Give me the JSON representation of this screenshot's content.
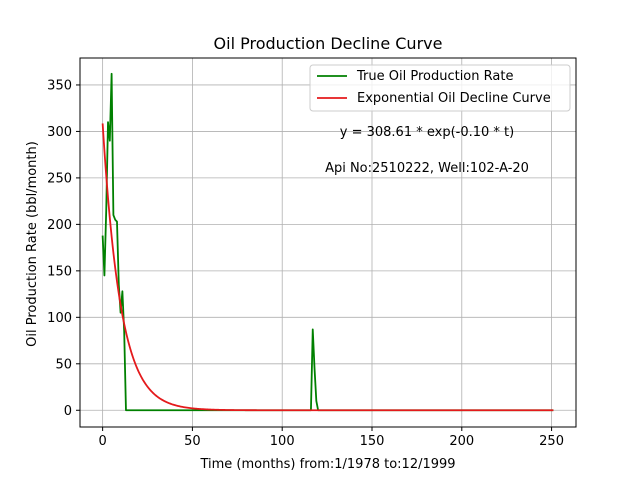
{
  "chart_data": {
    "type": "line",
    "title": "Oil Production Decline Curve",
    "xlabel": "Time (months) from:1/1978 to:12/1999",
    "ylabel": "Oil Production Rate (bbl/month)",
    "xlim": [
      -12.6,
      263.6
    ],
    "ylim": [
      -18,
      379
    ],
    "xticks": [
      0,
      50,
      100,
      150,
      200,
      250
    ],
    "yticks": [
      0,
      50,
      100,
      150,
      200,
      250,
      300,
      350
    ],
    "grid": true,
    "legend_position": "top-right",
    "series": [
      {
        "name": "True Oil Production Rate",
        "color": "#008000",
        "x": [
          0,
          1,
          2,
          3,
          4,
          5,
          6,
          7,
          8,
          9,
          10,
          11,
          12,
          13,
          14,
          116,
          117,
          118,
          119,
          120,
          251
        ],
        "y": [
          188,
          145,
          215,
          310,
          290,
          362,
          210,
          205,
          203,
          135,
          105,
          128,
          85,
          0,
          0,
          0,
          87,
          45,
          10,
          0,
          0
        ]
      },
      {
        "name": "Exponential Oil Decline Curve",
        "color": "#e41a1c",
        "function": "308.61*exp(-0.10*t)",
        "a": 308.61,
        "b": 0.1,
        "x_range": [
          0,
          251
        ]
      }
    ],
    "annotations": [
      "y = 308.61 * exp(-0.10 * t)",
      "Api No:2510222, Well:102-A-20"
    ]
  }
}
